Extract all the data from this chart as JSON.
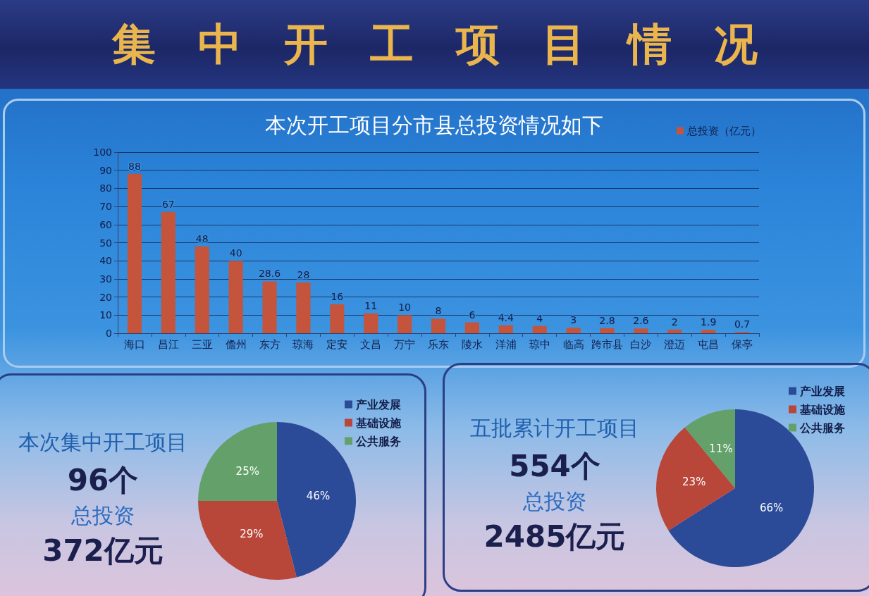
{
  "chart_data": [
    {
      "type": "bar",
      "title": "集中开工项目情况",
      "subtitle": "本次开工项目分市县总投资情况如下",
      "categories": [
        "海口",
        "昌江",
        "三亚",
        "儋州",
        "东方",
        "琼海",
        "定安",
        "文昌",
        "万宁",
        "乐东",
        "陵水",
        "洋浦",
        "琼中",
        "临高",
        "跨市县",
        "白沙",
        "澄迈",
        "屯昌",
        "保亭"
      ],
      "series": [
        {
          "name": "总投资（亿元）",
          "color": "#c4543c",
          "values": [
            88,
            67,
            48,
            40,
            28.6,
            28,
            16,
            11,
            10,
            8,
            6,
            4.4,
            4,
            3,
            2.8,
            2.6,
            2,
            1.9,
            0.7
          ]
        }
      ],
      "ylim": [
        0,
        100
      ],
      "yticks": [
        0,
        10,
        20,
        30,
        40,
        50,
        60,
        70,
        80,
        90,
        100
      ],
      "grid": "y",
      "legend": "top right",
      "data_labels": true
    },
    {
      "type": "pie",
      "title": "本次集中开工项目",
      "annotations": [
        "96个",
        "总投资",
        "372亿元"
      ],
      "categories": [
        "产业发展",
        "基础设施",
        "公共服务"
      ],
      "values": [
        46,
        29,
        25
      ],
      "colors": [
        "#2b4a98",
        "#b8473a",
        "#64a06a"
      ],
      "value_labels": [
        "46%",
        "29%",
        "25%"
      ],
      "legend": "top right"
    },
    {
      "type": "pie",
      "title": "五批累计开工项目",
      "annotations": [
        "554个",
        "总投资",
        "2485亿元"
      ],
      "categories": [
        "产业发展",
        "基础设施",
        "公共服务"
      ],
      "values": [
        66,
        23,
        11
      ],
      "colors": [
        "#2b4a98",
        "#b8473a",
        "#64a06a"
      ],
      "value_labels": [
        "66%",
        "23%",
        "11%"
      ],
      "legend": "top right"
    }
  ]
}
